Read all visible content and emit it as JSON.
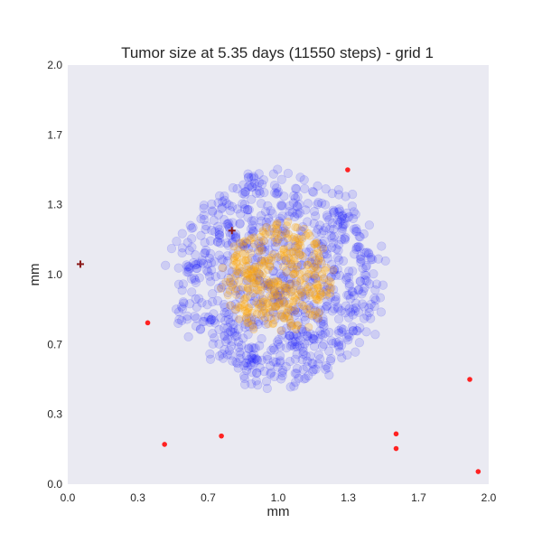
{
  "chart_data": {
    "type": "scatter",
    "title": "Tumor size at 5.35 days (11550 steps) - grid 1",
    "xlabel": "mm",
    "ylabel": "mm",
    "xlim": [
      0.0,
      2.0
    ],
    "ylim": [
      0.0,
      2.0
    ],
    "x_ticks": [
      "0.0",
      "0.3",
      "0.7",
      "1.0",
      "1.3",
      "1.7",
      "2.0"
    ],
    "y_ticks": [
      "0.0",
      "0.3",
      "0.7",
      "1.0",
      "1.3",
      "1.7",
      "2.0"
    ],
    "x_tick_values": [
      0.0,
      0.333,
      0.667,
      1.0,
      1.333,
      1.667,
      2.0
    ],
    "y_tick_values": [
      0.0,
      0.333,
      0.667,
      1.0,
      1.333,
      1.667,
      2.0
    ],
    "grid": false,
    "background_color": "#eaeaf2",
    "tumor_cluster": {
      "center": [
        1.0,
        0.98
      ],
      "outer_color": "#0000ff",
      "outer_radius": 0.52,
      "core_color": "#ffa500",
      "core_radius": 0.27,
      "outer_points_approx": 900,
      "core_points_approx": 350
    },
    "red_points": {
      "color": "#ff2222",
      "x": [
        0.38,
        0.46,
        0.73,
        1.33,
        1.56,
        1.56,
        1.91,
        1.95
      ],
      "y": [
        0.77,
        0.19,
        0.23,
        1.5,
        0.24,
        0.17,
        0.5,
        0.06
      ]
    },
    "dark_red_markers": {
      "color": "#8b1a1a",
      "x": [
        0.06,
        0.78
      ],
      "y": [
        1.05,
        1.21
      ]
    }
  }
}
